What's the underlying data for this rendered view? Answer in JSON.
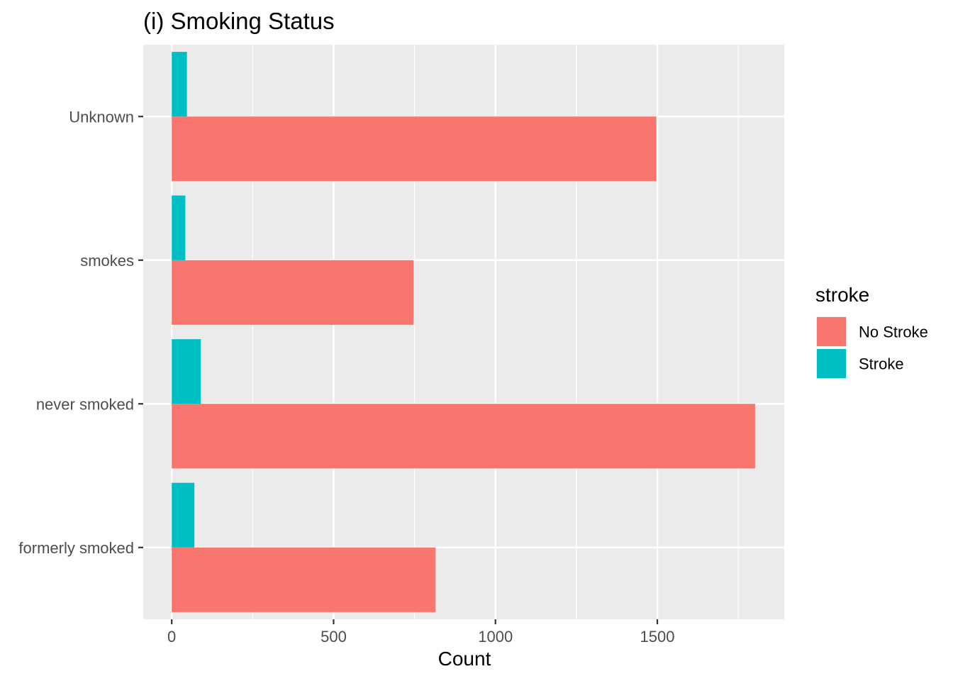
{
  "chart_data": {
    "type": "bar",
    "orientation": "horizontal",
    "title": "(i) Smoking Status",
    "xlabel": "Count",
    "ylabel": "",
    "categories": [
      "formerly smoked",
      "never smoked",
      "smokes",
      "Unknown"
    ],
    "series": [
      {
        "name": "No Stroke",
        "color": "#F8766D",
        "values": [
          815,
          1802,
          747,
          1497
        ]
      },
      {
        "name": "Stroke",
        "color": "#00BFC4",
        "values": [
          70,
          90,
          42,
          47
        ]
      }
    ],
    "xlim": [
      -88,
      1892
    ],
    "xticks": [
      0,
      500,
      1000,
      1500
    ],
    "xtick_labels": [
      "0",
      "500",
      "1000",
      "1500"
    ],
    "grid": true,
    "legend": {
      "title": "stroke",
      "position": "right"
    },
    "panel_color": "#EBEBEB",
    "grid_color": "#FFFFFF"
  }
}
